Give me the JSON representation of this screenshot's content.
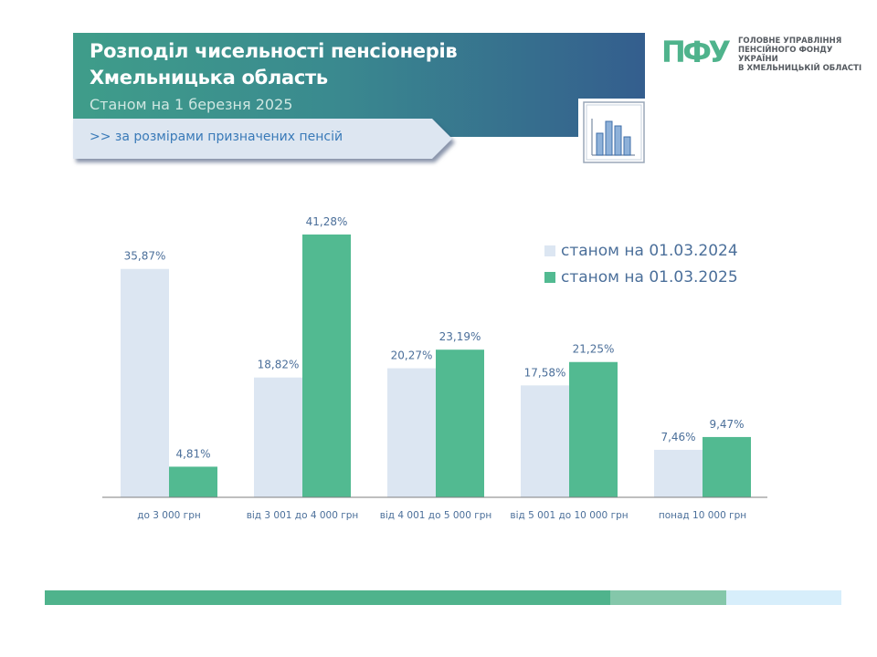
{
  "header": {
    "title": "Розподіл чисельності пенсіонерів Хмельницька область",
    "subtitle": "Станом на 1 березня 2025",
    "filter_label": ">> за розмірами  призначених пенсій"
  },
  "logo": {
    "mark": "ПФУ",
    "lines": [
      "ГОЛОВНЕ УПРАВЛІННЯ",
      "ПЕНСІЙНОГО ФОНДУ УКРАЇНИ",
      "В ХМЕЛЬНИЦЬКІЙ ОБЛАСТІ"
    ]
  },
  "colors": {
    "series_2024": "#dce6f2",
    "series_2025": "#52ba91",
    "label_text": "#4b6f9a",
    "axis": "#7f7f7f",
    "footer": [
      "#4fb38c",
      "#84c7aa",
      "#d7eefb"
    ]
  },
  "chart_data": {
    "type": "bar",
    "categories": [
      "до 3 000 грн",
      "від 3 001 до 4 000 грн",
      "від 4 001 до 5 000 грн",
      "від 5 001 до 10 000 грн",
      "понад 10 000 грн"
    ],
    "series": [
      {
        "name": "станом на 01.03.2024",
        "values": [
          35.87,
          18.82,
          20.27,
          17.58,
          7.46
        ],
        "labels": [
          "35,87%",
          "18,82%",
          "20,27%",
          "17,58%",
          "7,46%"
        ]
      },
      {
        "name": "станом на 01.03.2025",
        "values": [
          4.81,
          41.28,
          23.19,
          21.25,
          9.47
        ],
        "labels": [
          "4,81%",
          "41,28%",
          "23,19%",
          "21,25%",
          "9,47%"
        ]
      }
    ],
    "ylim": [
      0,
      41.28
    ],
    "legend": "top-right",
    "grid": false
  }
}
